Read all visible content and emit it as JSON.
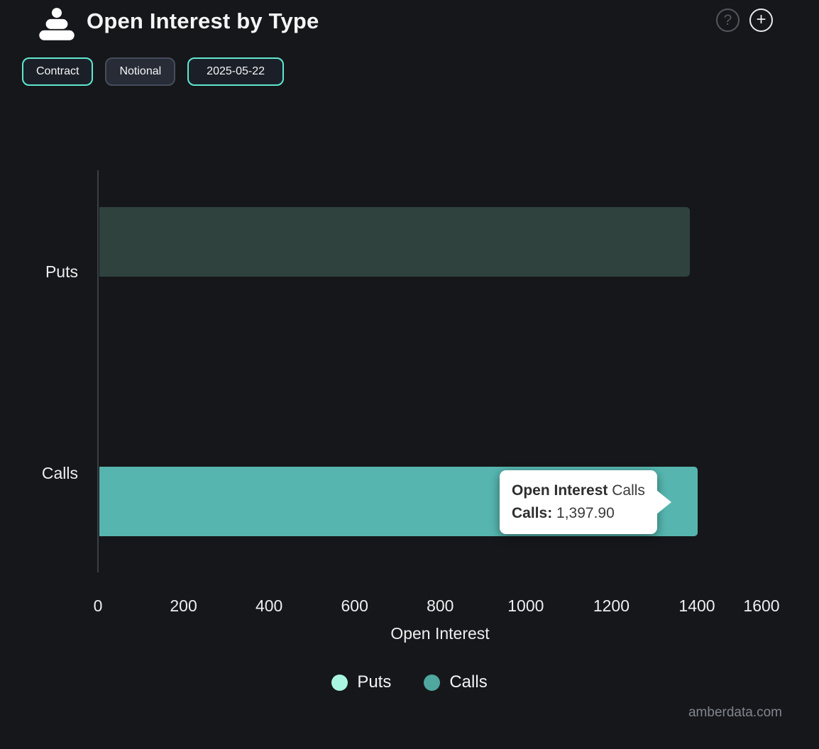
{
  "header": {
    "title": "Open Interest by Type",
    "help_icon": "question-mark-circle",
    "add_icon": "plus-circle"
  },
  "toolbar": {
    "buttons": [
      {
        "label": "Contract",
        "active": true
      },
      {
        "label": "Notional",
        "active": false
      },
      {
        "label": "2025-05-22",
        "active": true
      }
    ]
  },
  "chart_data": {
    "type": "bar",
    "orientation": "horizontal",
    "title": "Open Interest by Type",
    "categories": [
      "Puts",
      "Calls"
    ],
    "series": [
      {
        "name": "Puts",
        "value": 1380,
        "note": "estimated from bar length; bar shown dimmed while Calls is hovered"
      },
      {
        "name": "Calls",
        "value": 1397.9
      }
    ],
    "xlabel": "Open Interest",
    "x_ticks": [
      0,
      200,
      400,
      600,
      800,
      1000,
      1200,
      1400,
      1600
    ],
    "xlim": [
      0,
      1600
    ],
    "grid": false,
    "legend": [
      "Puts",
      "Calls"
    ],
    "legend_position": "bottom"
  },
  "tooltip": {
    "series_name": "Open Interest",
    "category": "Calls",
    "value_label": "Calls:",
    "value": "1,397.90"
  },
  "watermark": "amberdata.com",
  "colors": {
    "background": "#16171a",
    "calls_bar": "#56b6af",
    "puts_bar_dimmed": "#2f423e",
    "legend_puts": "#a9f5e1",
    "legend_calls": "#4fa79f",
    "accent_teal_border": "#5fe8d1",
    "axis_line": "#3a3e45",
    "tooltip_bg": "#ffffff"
  }
}
